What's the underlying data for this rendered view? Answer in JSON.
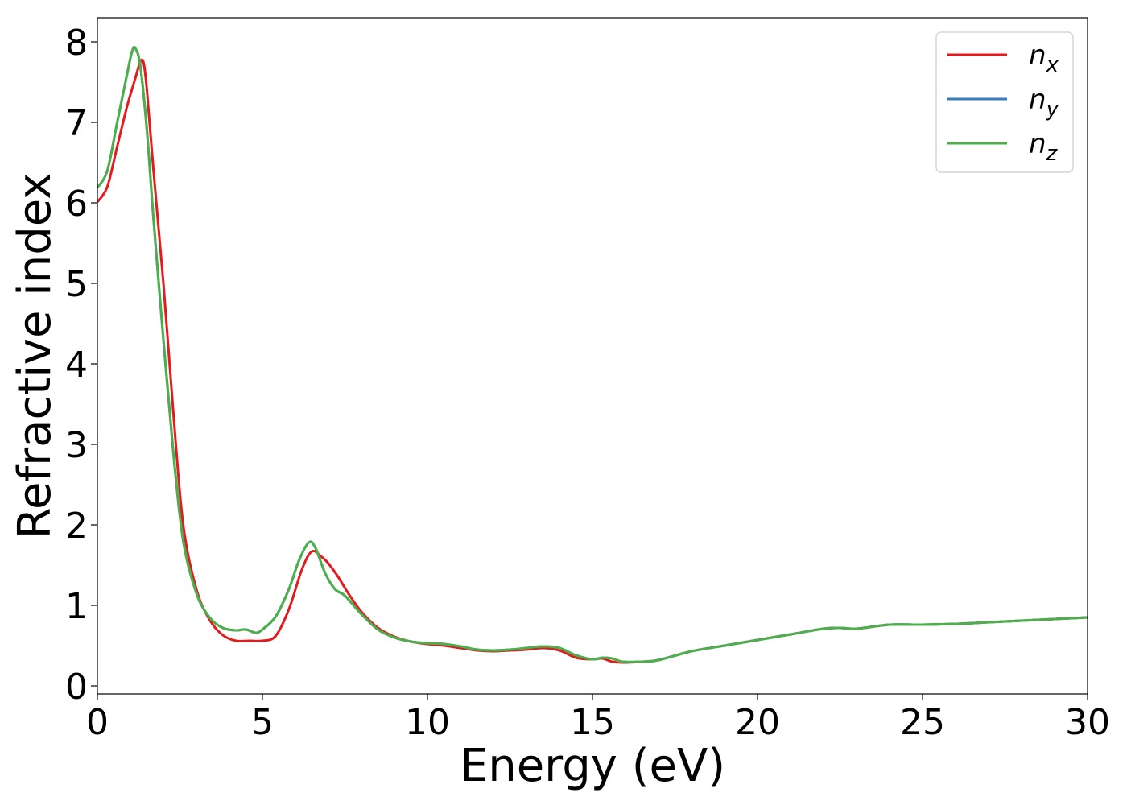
{
  "chart_data": {
    "type": "line",
    "xlabel": "Energy (eV)",
    "ylabel": "Refractive index",
    "xlim": [
      0,
      30
    ],
    "ylim": [
      -0.1,
      8.3
    ],
    "xticks": [
      0,
      5,
      10,
      15,
      20,
      25,
      30
    ],
    "yticks": [
      0,
      1,
      2,
      3,
      4,
      5,
      6,
      7,
      8
    ],
    "grid": false,
    "legend_position": "top-right",
    "series": [
      {
        "name": "n_x",
        "label_base": "n",
        "label_sub": "x",
        "color": "#e41a1c",
        "x": [
          0,
          0.3,
          0.6,
          0.9,
          1.15,
          1.3,
          1.4,
          1.5,
          1.7,
          2.0,
          2.3,
          2.6,
          3.0,
          3.4,
          3.8,
          4.2,
          4.6,
          5.0,
          5.4,
          5.8,
          6.2,
          6.5,
          6.8,
          7.0,
          7.3,
          7.6,
          8.0,
          8.5,
          9.0,
          9.5,
          10.0,
          10.5,
          11.0,
          11.5,
          12.0,
          12.5,
          13.0,
          13.5,
          14.0,
          14.5,
          15.0,
          15.3,
          15.6,
          15.9,
          16.5,
          17.0,
          18.0,
          19.0,
          20.0,
          21.0,
          22.0,
          22.5,
          23.0,
          24.0,
          25.0,
          26.0,
          27.0,
          28.0,
          29.0,
          30.0
        ],
        "y": [
          6.01,
          6.2,
          6.7,
          7.2,
          7.55,
          7.75,
          7.74,
          7.4,
          6.4,
          5.0,
          3.4,
          2.0,
          1.2,
          0.82,
          0.63,
          0.56,
          0.56,
          0.56,
          0.62,
          0.95,
          1.45,
          1.67,
          1.6,
          1.52,
          1.35,
          1.15,
          0.92,
          0.72,
          0.61,
          0.55,
          0.52,
          0.5,
          0.47,
          0.44,
          0.43,
          0.44,
          0.45,
          0.47,
          0.44,
          0.35,
          0.33,
          0.34,
          0.3,
          0.29,
          0.3,
          0.32,
          0.43,
          0.5,
          0.57,
          0.64,
          0.71,
          0.72,
          0.71,
          0.76,
          0.76,
          0.77,
          0.79,
          0.81,
          0.83,
          0.85
        ]
      },
      {
        "name": "n_y",
        "label_base": "n",
        "label_sub": "y",
        "color": "#377eb8",
        "x": [
          0,
          0.3,
          0.6,
          0.9,
          1.05,
          1.15,
          1.3,
          1.5,
          1.7,
          2.0,
          2.3,
          2.6,
          3.0,
          3.4,
          3.8,
          4.2,
          4.5,
          4.8,
          5.0,
          5.4,
          5.8,
          6.1,
          6.4,
          6.6,
          6.9,
          7.2,
          7.5,
          8.0,
          8.5,
          9.0,
          9.5,
          10.0,
          10.5,
          11.0,
          11.5,
          12.0,
          12.5,
          13.0,
          13.5,
          14.0,
          14.5,
          15.0,
          15.3,
          15.6,
          15.9,
          16.5,
          17.0,
          18.0,
          19.0,
          20.0,
          21.0,
          22.0,
          22.5,
          23.0,
          24.0,
          25.0,
          26.0,
          27.0,
          28.0,
          29.0,
          30.0
        ],
        "y": [
          6.19,
          6.4,
          7.0,
          7.6,
          7.88,
          7.92,
          7.7,
          6.9,
          5.8,
          4.3,
          2.9,
          1.8,
          1.15,
          0.85,
          0.72,
          0.69,
          0.7,
          0.66,
          0.7,
          0.86,
          1.2,
          1.55,
          1.78,
          1.72,
          1.4,
          1.2,
          1.12,
          0.89,
          0.7,
          0.6,
          0.55,
          0.53,
          0.52,
          0.49,
          0.45,
          0.44,
          0.45,
          0.47,
          0.49,
          0.47,
          0.38,
          0.33,
          0.35,
          0.34,
          0.3,
          0.3,
          0.32,
          0.43,
          0.5,
          0.57,
          0.64,
          0.71,
          0.72,
          0.71,
          0.76,
          0.76,
          0.77,
          0.79,
          0.81,
          0.83,
          0.85
        ]
      },
      {
        "name": "n_z",
        "label_base": "n",
        "label_sub": "z",
        "color": "#4daf4a",
        "x": [
          0,
          0.3,
          0.6,
          0.9,
          1.05,
          1.15,
          1.3,
          1.5,
          1.7,
          2.0,
          2.3,
          2.6,
          3.0,
          3.4,
          3.8,
          4.2,
          4.5,
          4.8,
          5.0,
          5.4,
          5.8,
          6.1,
          6.4,
          6.6,
          6.9,
          7.2,
          7.5,
          8.0,
          8.5,
          9.0,
          9.5,
          10.0,
          10.5,
          11.0,
          11.5,
          12.0,
          12.5,
          13.0,
          13.5,
          14.0,
          14.5,
          15.0,
          15.3,
          15.6,
          15.9,
          16.5,
          17.0,
          18.0,
          19.0,
          20.0,
          21.0,
          22.0,
          22.5,
          23.0,
          24.0,
          25.0,
          26.0,
          27.0,
          28.0,
          29.0,
          30.0
        ],
        "y": [
          6.19,
          6.4,
          7.0,
          7.6,
          7.88,
          7.92,
          7.7,
          6.9,
          5.8,
          4.3,
          2.9,
          1.8,
          1.15,
          0.85,
          0.72,
          0.69,
          0.7,
          0.66,
          0.7,
          0.86,
          1.2,
          1.55,
          1.78,
          1.72,
          1.4,
          1.2,
          1.12,
          0.89,
          0.7,
          0.6,
          0.55,
          0.53,
          0.52,
          0.49,
          0.45,
          0.44,
          0.45,
          0.47,
          0.49,
          0.47,
          0.38,
          0.33,
          0.35,
          0.34,
          0.3,
          0.3,
          0.32,
          0.43,
          0.5,
          0.57,
          0.64,
          0.71,
          0.72,
          0.71,
          0.76,
          0.76,
          0.77,
          0.79,
          0.81,
          0.83,
          0.85
        ]
      }
    ]
  }
}
